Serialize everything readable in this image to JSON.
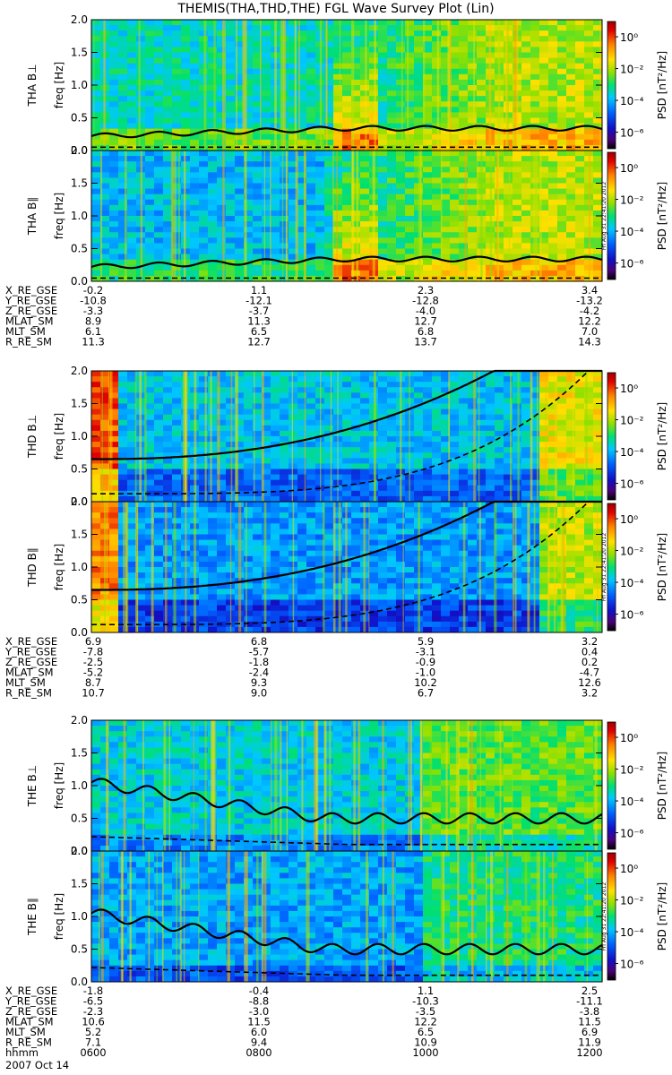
{
  "title": "THEMIS(THA,THD,THE) FGL Wave Survey Plot (Lin)",
  "colorbar": {
    "label": "PSD [nT²/Hz]",
    "ticks": [
      "10⁰",
      "10⁻²",
      "10⁻⁴",
      "10⁻⁶"
    ],
    "tick_values": [
      1,
      0.01,
      0.0001,
      1e-06
    ],
    "colors": [
      "#000000",
      "#5a007f",
      "#1010c8",
      "#0050ff",
      "#00c0ff",
      "#00e060",
      "#c8e600",
      "#ffd700",
      "#ff8000",
      "#e00000",
      "#b00000"
    ]
  },
  "stamp": "Fri Aug 31 22:41:20 2012",
  "chart_data": [
    {
      "type": "heatmap",
      "probe": "THA",
      "panels": [
        {
          "ylabel": "THA B⊥",
          "axis_label": "freq [Hz]",
          "ylim": [
            0,
            2.0
          ],
          "yticks": [
            "0.0",
            "0.5",
            "1.0",
            "1.5",
            "2.0"
          ]
        },
        {
          "ylabel": "THA B∥",
          "axis_label": "freq [Hz]",
          "ylim": [
            0,
            2.0
          ],
          "yticks": [
            "0.0",
            "0.5",
            "1.0",
            "1.5",
            "2.0"
          ]
        }
      ],
      "ephemeris": {
        "labels": [
          "X_RE_GSE",
          "Y_RE_GSE",
          "Z_RE_GSE",
          "MLAT_SM",
          "MLT_SM",
          "R_RE_SM"
        ],
        "values": [
          [
            "-0.2",
            "1.1",
            "2.3",
            "3.4"
          ],
          [
            "-10.8",
            "-12.1",
            "-12.8",
            "-13.2"
          ],
          [
            "-3.3",
            "-3.7",
            "-4.0",
            "-4.2"
          ],
          [
            "8.9",
            "11.3",
            "12.7",
            "12.2"
          ],
          [
            "6.1",
            "6.5",
            "6.8",
            "7.0"
          ],
          [
            "11.3",
            "12.7",
            "13.7",
            "14.3"
          ]
        ]
      }
    },
    {
      "type": "heatmap",
      "probe": "THD",
      "panels": [
        {
          "ylabel": "THD B⊥",
          "axis_label": "freq [Hz]",
          "ylim": [
            0,
            2.0
          ],
          "yticks": [
            "0.0",
            "0.5",
            "1.0",
            "1.5",
            "2.0"
          ]
        },
        {
          "ylabel": "THD B∥",
          "axis_label": "freq [Hz]",
          "ylim": [
            0,
            2.0
          ],
          "yticks": [
            "0.0",
            "0.5",
            "1.0",
            "1.5",
            "2.0"
          ]
        }
      ],
      "ephemeris": {
        "labels": [
          "X_RE_GSE",
          "Y_RE_GSE",
          "Z_RE_GSE",
          "MLAT_SM",
          "MLT_SM",
          "R_RE_SM"
        ],
        "values": [
          [
            "6.9",
            "6.8",
            "5.9",
            "3.2"
          ],
          [
            "-7.8",
            "-5.7",
            "-3.1",
            "0.4"
          ],
          [
            "-2.5",
            "-1.8",
            "-0.9",
            "0.2"
          ],
          [
            "-5.2",
            "-2.4",
            "-1.0",
            "-4.7"
          ],
          [
            "8.7",
            "9.3",
            "10.2",
            "12.6"
          ],
          [
            "10.7",
            "9.0",
            "6.7",
            "3.2"
          ]
        ]
      }
    },
    {
      "type": "heatmap",
      "probe": "THE",
      "panels": [
        {
          "ylabel": "THE B⊥",
          "axis_label": "freq [Hz]",
          "ylim": [
            0,
            2.0
          ],
          "yticks": [
            "0.0",
            "0.5",
            "1.0",
            "1.5",
            "2.0"
          ]
        },
        {
          "ylabel": "THE B∥",
          "axis_label": "freq [Hz]",
          "ylim": [
            0,
            2.0
          ],
          "yticks": [
            "0.0",
            "0.5",
            "1.0",
            "1.5",
            "2.0"
          ]
        }
      ],
      "ephemeris": {
        "labels": [
          "X_RE_GSE",
          "Y_RE_GSE",
          "Z_RE_GSE",
          "MLAT_SM",
          "MLT_SM",
          "R_RE_SM"
        ],
        "values": [
          [
            "-1.8",
            "-0.4",
            "1.1",
            "2.5"
          ],
          [
            "-6.5",
            "-8.8",
            "-10.3",
            "-11.1"
          ],
          [
            "-2.3",
            "-3.0",
            "-3.5",
            "-3.8"
          ],
          [
            "10.6",
            "11.5",
            "12.2",
            "11.5"
          ],
          [
            "5.2",
            "6.0",
            "6.5",
            "6.9"
          ],
          [
            "7.1",
            "9.4",
            "10.9",
            "11.9"
          ]
        ],
        "time_label": "hhmm",
        "time_ticks": [
          "0600",
          "0800",
          "1000",
          "1200"
        ],
        "date": "2007 Oct 14"
      }
    }
  ]
}
